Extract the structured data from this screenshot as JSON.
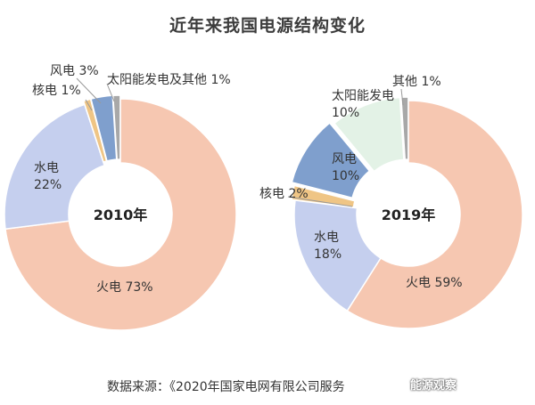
{
  "title": "近年来我国电源结构变化",
  "source": "数据来源：《2020年国家电网有限公司服务",
  "watermark": "能源观察",
  "colors": {
    "火电": "#f6c7b1",
    "水电": "#c5cfee",
    "核电": "#efc585",
    "风电": "#7f9fcd",
    "太阳能发电": "#e3f2e6",
    "其他": "#a8a8a8"
  },
  "chart_data": [
    {
      "type": "pie",
      "center_label": "2010年",
      "slices": [
        {
          "name": "火电",
          "value": 73,
          "label": "火电  73%"
        },
        {
          "name": "水电",
          "value": 22,
          "label": "水电\n22%"
        },
        {
          "name": "核电",
          "value": 1,
          "label": "核电  1%"
        },
        {
          "name": "风电",
          "value": 3,
          "label": "风电  3%"
        },
        {
          "name": "太阳能发电及其他",
          "value": 1,
          "label": "太阳能发电及其他  1%",
          "color_key": "其他"
        }
      ]
    },
    {
      "type": "pie",
      "center_label": "2019年",
      "slices": [
        {
          "name": "火电",
          "value": 59,
          "label": "火电  59%"
        },
        {
          "name": "水电",
          "value": 18,
          "label": "水电\n18%"
        },
        {
          "name": "核电",
          "value": 2,
          "label": "核电  2%"
        },
        {
          "name": "风电",
          "value": 10,
          "label": "风电\n10%"
        },
        {
          "name": "太阳能发电",
          "value": 10,
          "label": "太阳能发电\n10%"
        },
        {
          "name": "其他",
          "value": 1,
          "label": "其他  1%"
        }
      ]
    }
  ]
}
